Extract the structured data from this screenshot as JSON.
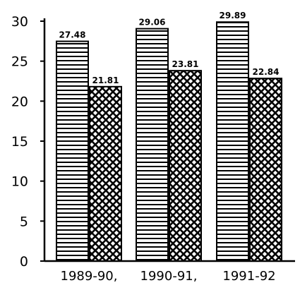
{
  "chart_data": {
    "type": "bar",
    "title": "",
    "xlabel": "",
    "ylabel": "",
    "ylim": [
      0,
      30
    ],
    "yticks": [
      0,
      5,
      10,
      15,
      20,
      25,
      30
    ],
    "ytick_labels": [
      "0",
      "5",
      "10",
      "15",
      "20",
      "25",
      "30"
    ],
    "grid": false,
    "categories": [
      "1989-90,",
      "1990-91,",
      "1991-92"
    ],
    "series": [
      {
        "pattern": "horizontal-lines",
        "values": [
          27.48,
          29.06,
          29.89
        ],
        "value_labels": [
          "27.48",
          "29.06",
          "29.89"
        ]
      },
      {
        "pattern": "crosshatch",
        "values": [
          21.81,
          23.81,
          22.84
        ],
        "value_labels": [
          "21.81",
          "23.81",
          "22.84"
        ]
      }
    ]
  }
}
